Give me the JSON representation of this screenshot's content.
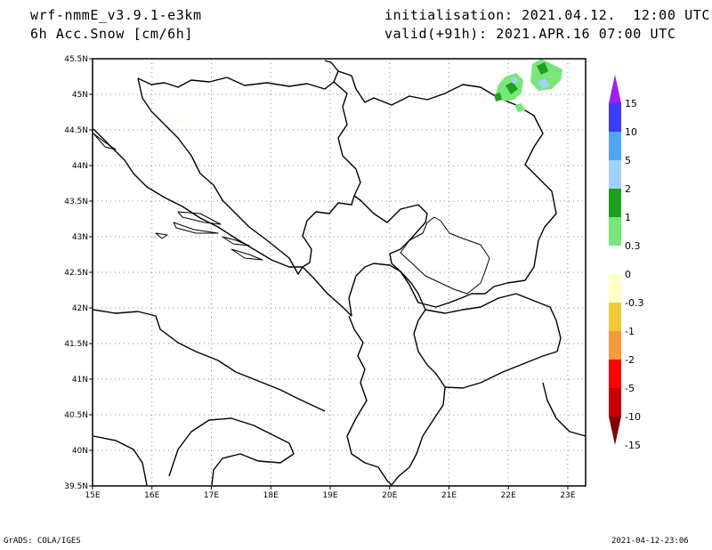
{
  "header": {
    "model": "wrf-nmmE_v3.9.1-e3km",
    "field": "6h Acc.Snow [cm/6h]",
    "init": "initialisation: 2021.04.12.  12:00 UTC",
    "valid": "valid(+91h): 2021.APR.16 07:00 UTC"
  },
  "footer": {
    "left": "GrADS: COLA/IGES",
    "right": "2021-04-12-23:06"
  },
  "axes": {
    "lon_ticks": [
      "15E",
      "16E",
      "17E",
      "18E",
      "19E",
      "20E",
      "21E",
      "22E",
      "23E"
    ],
    "lat_ticks": [
      "39.5N",
      "40N",
      "40.5N",
      "41N",
      "41.5N",
      "42N",
      "42.5N",
      "43N",
      "43.5N",
      "44N",
      "44.5N",
      "45N",
      "45.5N"
    ],
    "lon_range": [
      15,
      23.3
    ],
    "lat_range": [
      39.5,
      45.5
    ],
    "grid": "dotted"
  },
  "colorbar": {
    "levels": [
      "15",
      "10",
      "5",
      "2",
      "1",
      "0.3",
      "0",
      "-0.3",
      "-1",
      "-2",
      "-5",
      "-10",
      "-15"
    ],
    "colors": [
      "#a020f0",
      "#3c3cff",
      "#50a5f5",
      "#a0d2ff",
      "#1ea01e",
      "#78e678",
      "#ffffff",
      "#ffffc8",
      "#f5c83c",
      "#f59b3c",
      "#ff0000",
      "#c80000",
      "#800000"
    ]
  }
}
